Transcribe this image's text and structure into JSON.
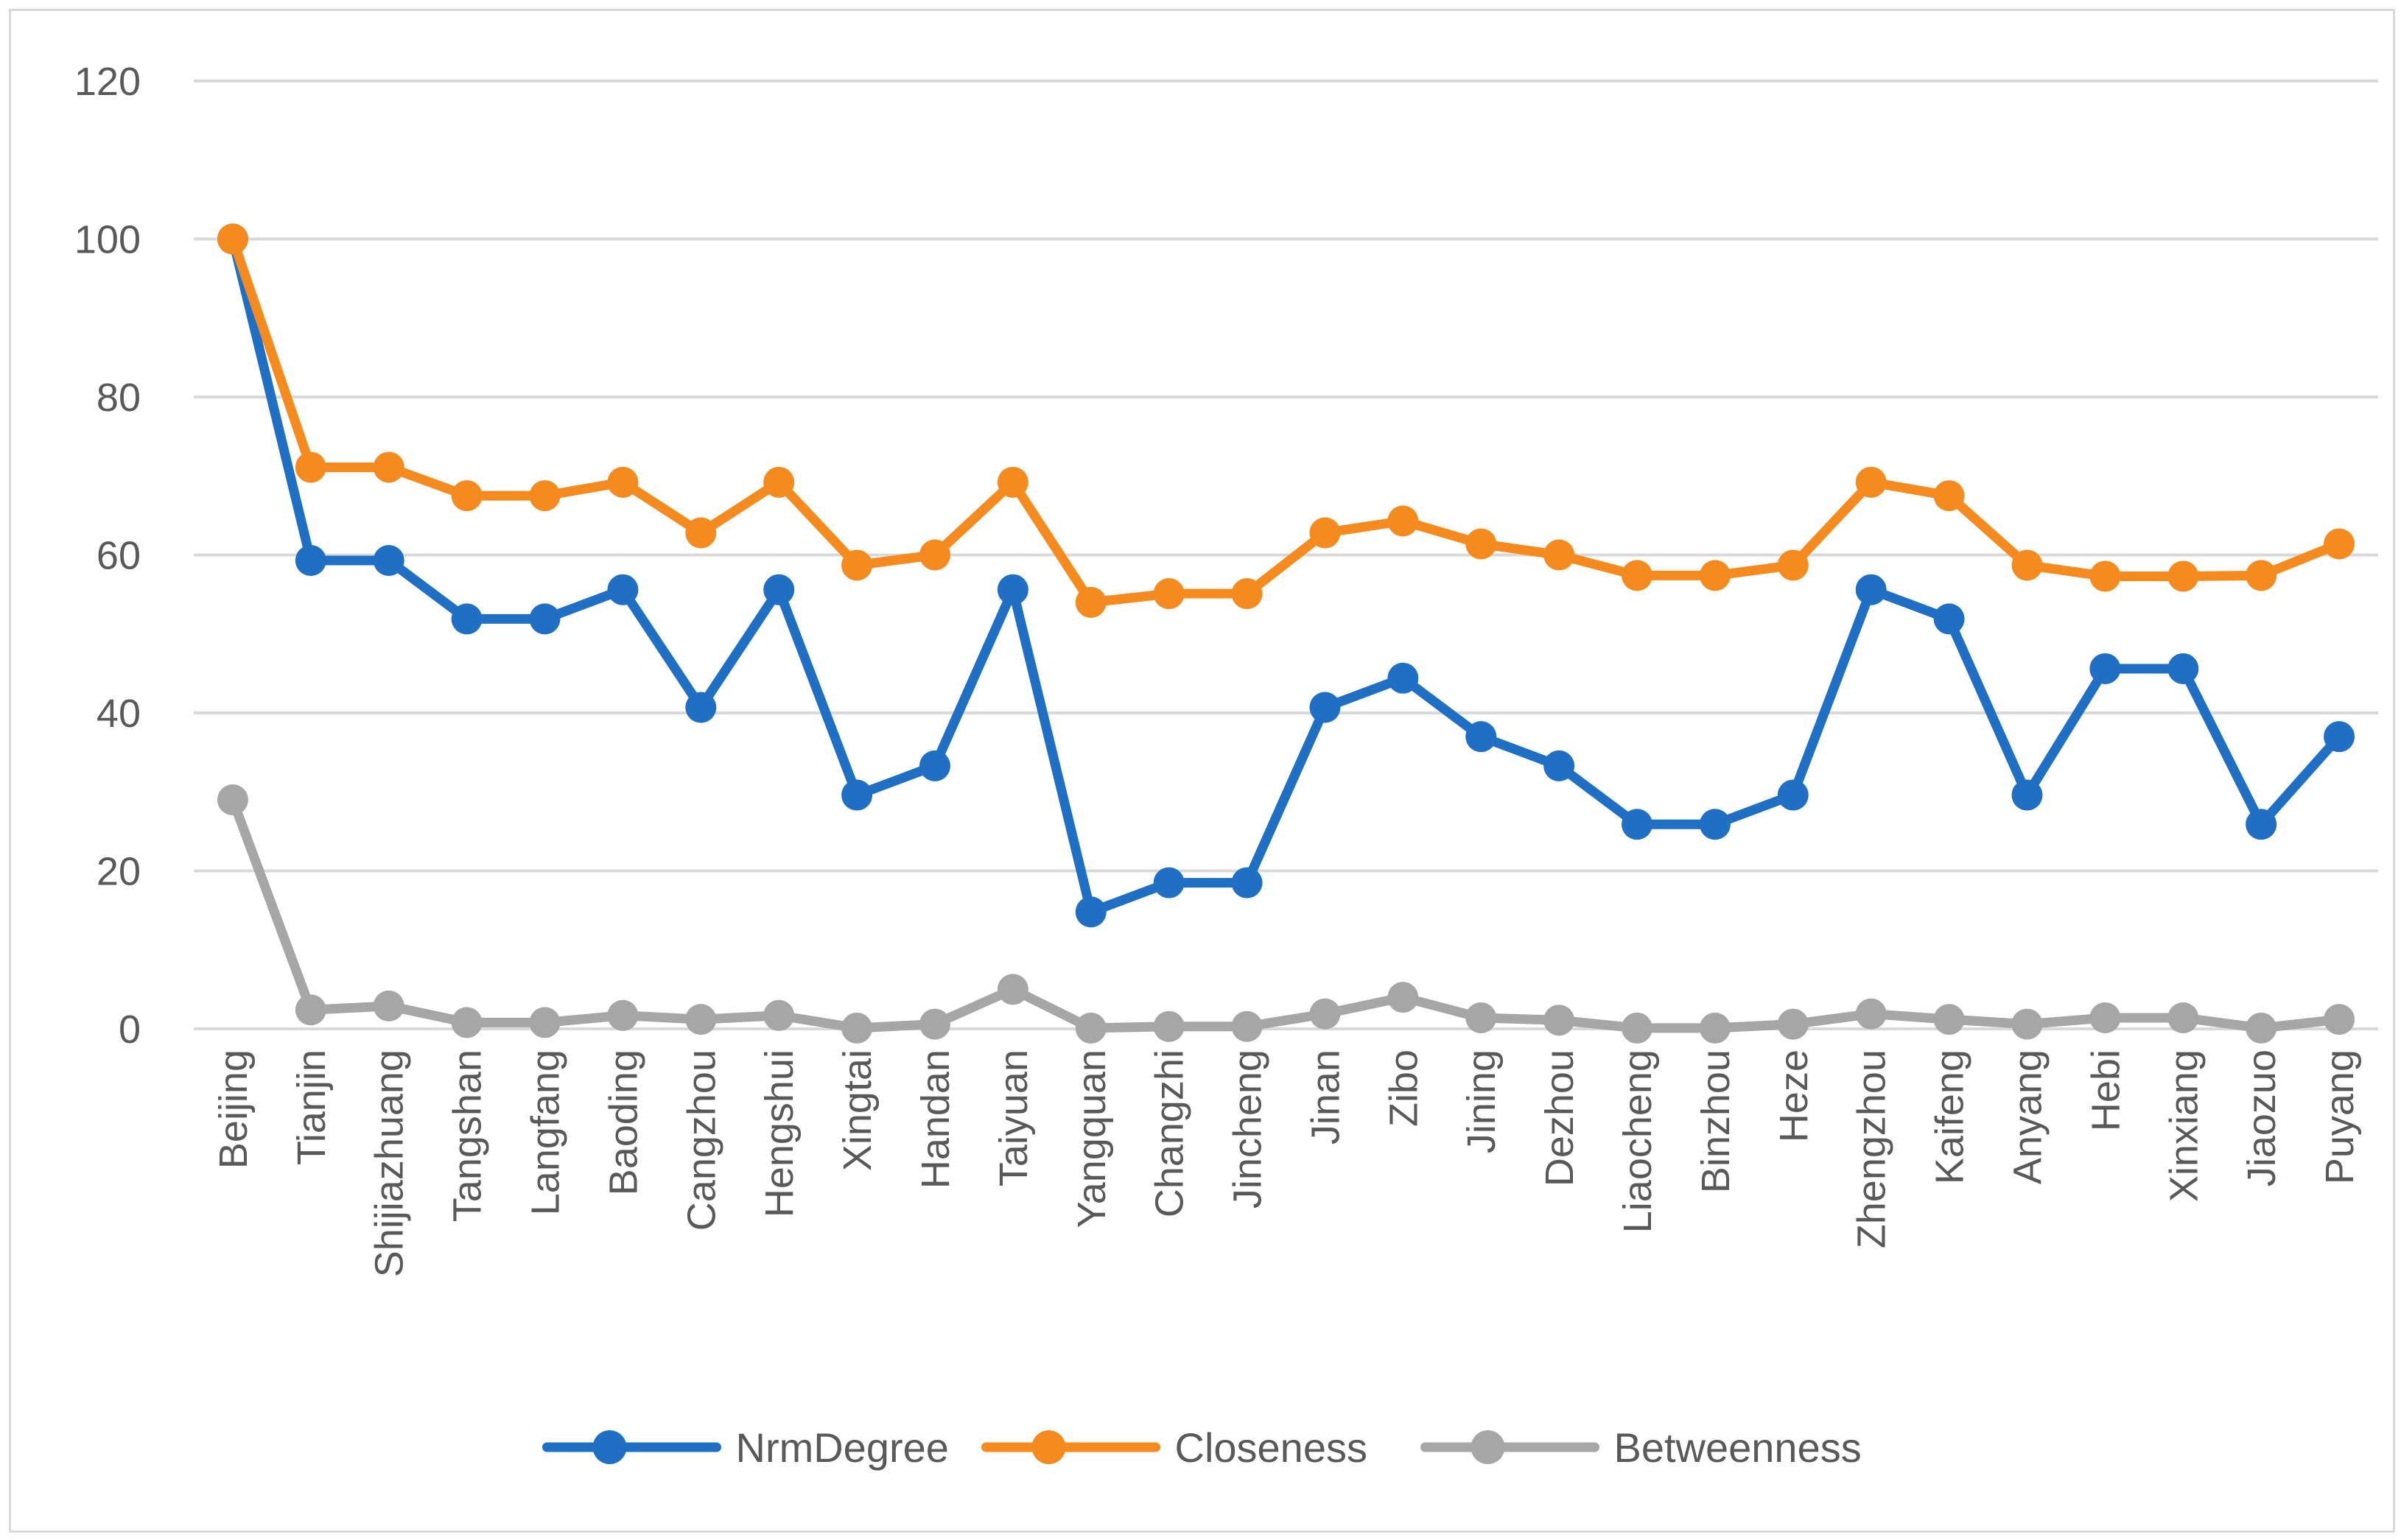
{
  "chart_data": {
    "type": "line",
    "title": "",
    "xlabel": "",
    "ylabel": "",
    "ylim": [
      0,
      120
    ],
    "yticks": [
      0,
      20,
      40,
      60,
      80,
      100,
      120
    ],
    "grid": true,
    "legend_position": "bottom-center",
    "categories": [
      "Beijing",
      "Tianjin",
      "Shijiazhuang",
      "Tangshan",
      "Langfang",
      "Baoding",
      "Cangzhou",
      "Hengshui",
      "Xingtai",
      "Handan",
      "Taiyuan",
      "Yangquan",
      "Changzhi",
      "Jincheng",
      "Jinan",
      "Zibo",
      "Jining",
      "Dezhou",
      "Liaocheng",
      "Binzhou",
      "Heze",
      "Zhengzhou",
      "Kaifeng",
      "Anyang",
      "Hebi",
      "Xinxiang",
      "Jiaozuo",
      "Puyang"
    ],
    "series": [
      {
        "name": "NrmDegree",
        "color": "#1f6fc5",
        "values": [
          100,
          59.3,
          59.3,
          51.9,
          51.9,
          55.6,
          40.7,
          55.6,
          29.6,
          33.3,
          55.6,
          14.8,
          18.5,
          18.5,
          40.7,
          44.4,
          37.0,
          33.3,
          25.9,
          25.9,
          29.6,
          55.6,
          51.9,
          29.6,
          45.6,
          45.6,
          25.9,
          37.0
        ]
      },
      {
        "name": "Closeness",
        "color": "#f58a1f",
        "values": [
          100,
          71.1,
          71.1,
          67.5,
          67.5,
          69.2,
          62.8,
          69.2,
          58.7,
          60.0,
          69.2,
          54.0,
          55.1,
          55.1,
          62.8,
          64.3,
          61.4,
          60.0,
          57.4,
          57.4,
          58.7,
          69.2,
          67.5,
          58.7,
          57.3,
          57.3,
          57.4,
          61.4
        ]
      },
      {
        "name": "Betweenness",
        "color": "#a6a6a6",
        "values": [
          29.0,
          2.4,
          2.9,
          0.8,
          0.8,
          1.7,
          1.2,
          1.7,
          0.1,
          0.6,
          5.0,
          0.1,
          0.3,
          0.3,
          1.9,
          4.0,
          1.4,
          1.1,
          0.1,
          0.1,
          0.6,
          1.9,
          1.2,
          0.6,
          1.4,
          1.4,
          0.1,
          1.2
        ]
      }
    ]
  }
}
